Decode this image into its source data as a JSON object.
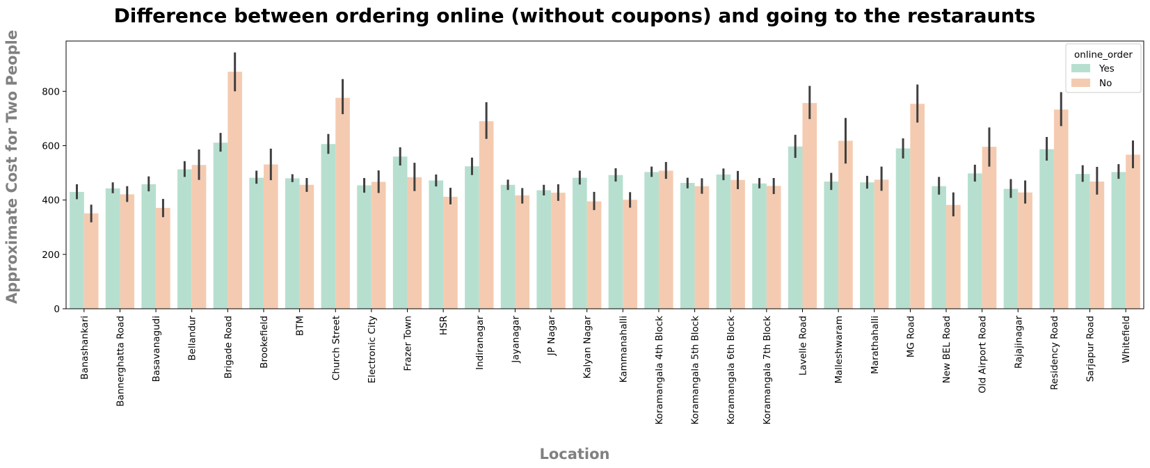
{
  "chart_data": {
    "type": "bar",
    "title": "Difference between ordering online (without coupons) and going to the restaraunts",
    "xlabel": "Location",
    "ylabel": "Approximate Cost for Two People",
    "ylim": [
      0,
      985
    ],
    "yticks": [
      0,
      200,
      400,
      600,
      800
    ],
    "grid": false,
    "legend": {
      "title": "online_order",
      "placement": "top-right"
    },
    "categories": [
      "Banashankari",
      "Bannerghatta Road",
      "Basavanagudi",
      "Bellandur",
      "Brigade Road",
      "Brookefield",
      "BTM",
      "Church Street",
      "Electronic City",
      "Frazer Town",
      "HSR",
      "Indiranagar",
      "Jayanagar",
      "JP Nagar",
      "Kalyan Nagar",
      "Kammanahalli",
      "Koramangala 4th Block",
      "Koramangala 5th Block",
      "Koramangala 6th Block",
      "Koramangala 7th Block",
      "Lavelle Road",
      "Malleshwaram",
      "Marathahalli",
      "MG Road",
      "New BEL Road",
      "Old Airport Road",
      "Rajajinagar",
      "Residency Road",
      "Sarjapur Road",
      "Whitefield"
    ],
    "series": [
      {
        "name": "Yes",
        "color": "#b7dfcf",
        "values": [
          430,
          443,
          458,
          513,
          611,
          482,
          480,
          606,
          454,
          560,
          472,
          524,
          456,
          436,
          482,
          492,
          503,
          463,
          494,
          461,
          597,
          468,
          465,
          590,
          451,
          498,
          441,
          587,
          496,
          503
        ],
        "err_low": [
          403,
          425,
          432,
          485,
          578,
          460,
          466,
          570,
          427,
          527,
          450,
          492,
          437,
          417,
          457,
          468,
          485,
          443,
          473,
          443,
          555,
          437,
          442,
          553,
          420,
          468,
          408,
          545,
          467,
          478
        ],
        "err_high": [
          458,
          465,
          487,
          543,
          647,
          508,
          495,
          643,
          481,
          594,
          494,
          556,
          475,
          456,
          508,
          517,
          523,
          482,
          516,
          481,
          640,
          500,
          489,
          627,
          485,
          530,
          477,
          632,
          528,
          532
        ]
      },
      {
        "name": "No",
        "color": "#f4cbb1",
        "values": [
          351,
          421,
          371,
          529,
          872,
          531,
          456,
          776,
          467,
          484,
          412,
          690,
          417,
          427,
          395,
          401,
          508,
          451,
          474,
          452,
          757,
          618,
          475,
          754,
          382,
          596,
          428,
          733,
          468,
          567
        ],
        "err_low": [
          318,
          393,
          337,
          474,
          800,
          473,
          430,
          716,
          426,
          433,
          384,
          625,
          387,
          397,
          363,
          372,
          478,
          423,
          440,
          422,
          698,
          534,
          434,
          685,
          340,
          523,
          387,
          672,
          420,
          517
        ],
        "err_high": [
          383,
          451,
          404,
          586,
          943,
          589,
          481,
          845,
          509,
          537,
          445,
          760,
          444,
          458,
          430,
          429,
          540,
          480,
          507,
          481,
          820,
          702,
          523,
          825,
          428,
          667,
          472,
          797,
          522,
          619
        ]
      }
    ]
  }
}
